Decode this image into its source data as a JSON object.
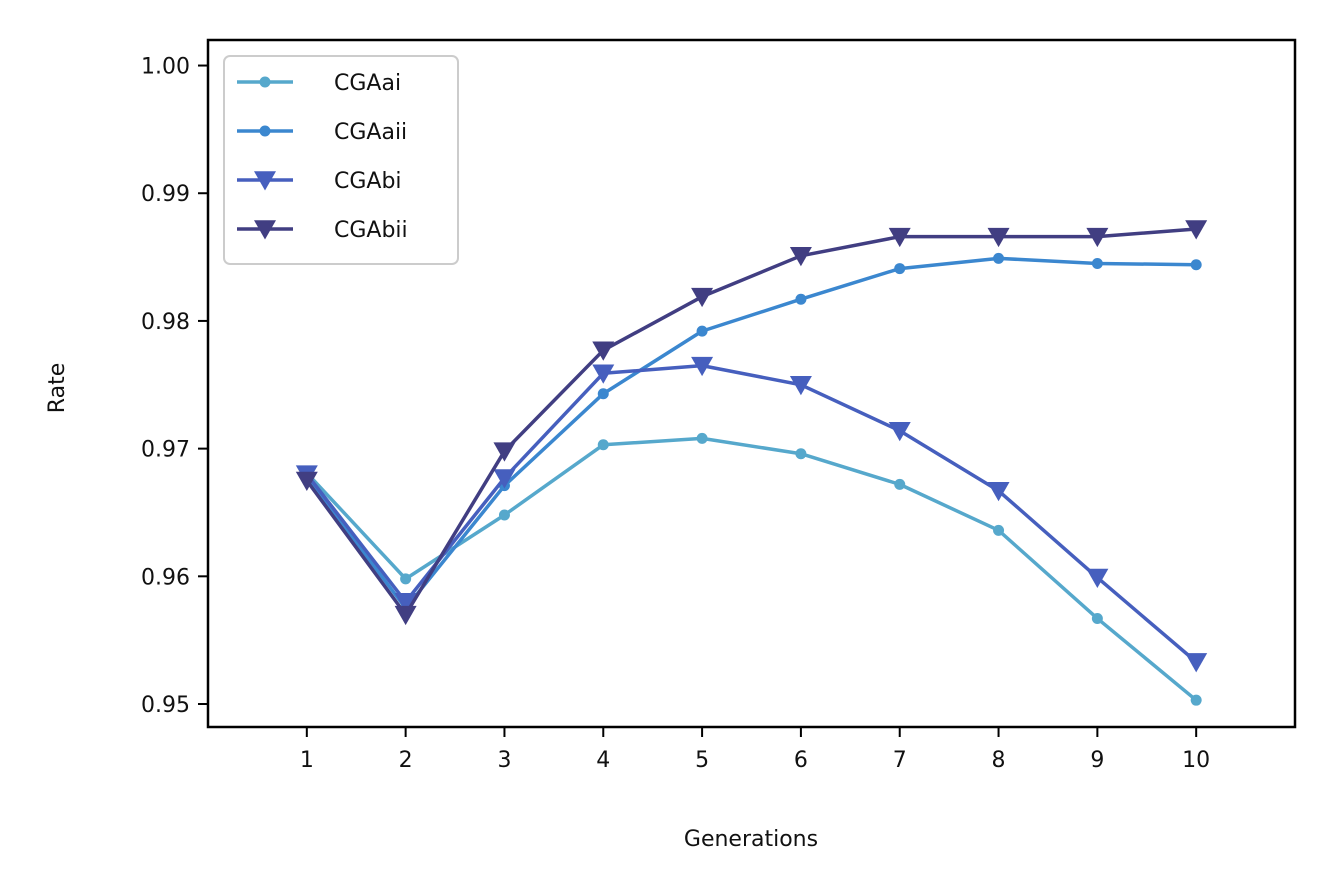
{
  "chart_data": {
    "type": "line",
    "title": "",
    "xlabel": "Generations",
    "ylabel": "Rate",
    "x": [
      1,
      2,
      3,
      4,
      5,
      6,
      7,
      8,
      9,
      10
    ],
    "xlim": [
      0,
      11
    ],
    "ylim": [
      0.9482,
      1.002
    ],
    "yticks": [
      0.95,
      0.96,
      0.97,
      0.98,
      0.99,
      1.0
    ],
    "ytick_labels": [
      "0.95",
      "0.96",
      "0.97",
      "0.98",
      "0.99",
      "1.00"
    ],
    "xtick_labels": [
      "1",
      "2",
      "3",
      "4",
      "5",
      "6",
      "7",
      "8",
      "9",
      "10"
    ],
    "grid": false,
    "legend_position": "top-left",
    "series": [
      {
        "name": "CGAai",
        "color": "#56a8cc",
        "marker": "dot",
        "values": [
          0.9681,
          0.9598,
          0.9648,
          0.9703,
          0.9708,
          0.9696,
          0.9672,
          0.9636,
          0.9567,
          0.9503
        ]
      },
      {
        "name": "CGAaii",
        "color": "#3b87cf",
        "marker": "dot",
        "values": [
          0.9678,
          0.9575,
          0.9671,
          0.9743,
          0.9792,
          0.9817,
          0.9841,
          0.9849,
          0.9845,
          0.9844
        ]
      },
      {
        "name": "CGAbi",
        "color": "#465fbe",
        "marker": "triangle-down",
        "values": [
          0.968,
          0.958,
          0.9677,
          0.9759,
          0.9765,
          0.975,
          0.9714,
          0.9667,
          0.9599,
          0.9533
        ]
      },
      {
        "name": "CGAbii",
        "color": "#413e82",
        "marker": "triangle-down",
        "values": [
          0.9675,
          0.957,
          0.9698,
          0.9777,
          0.9819,
          0.9851,
          0.9866,
          0.9866,
          0.9866,
          0.9872
        ]
      }
    ]
  }
}
